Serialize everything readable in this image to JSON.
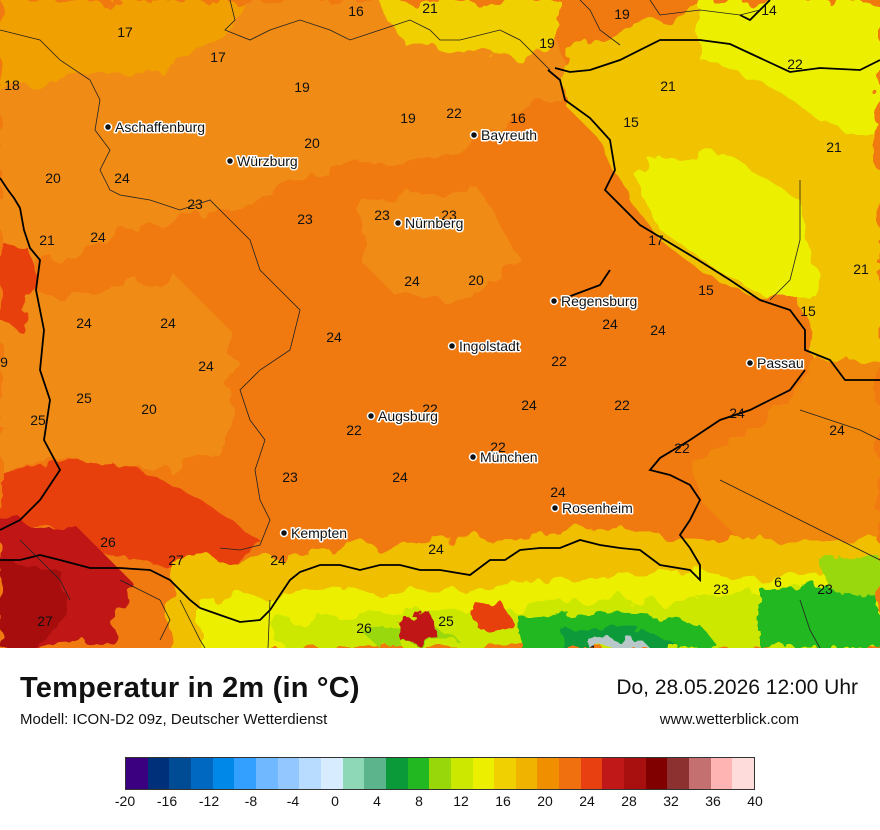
{
  "map": {
    "cities": [
      {
        "name": "Aschaffenburg"
      },
      {
        "name": "Würzburg"
      },
      {
        "name": "Bayreuth"
      },
      {
        "name": "Nürnberg"
      },
      {
        "name": "Regensburg"
      },
      {
        "name": "Ingolstadt"
      },
      {
        "name": "Passau"
      },
      {
        "name": "Augsburg"
      },
      {
        "name": "München"
      },
      {
        "name": "Rosenheim"
      },
      {
        "name": "Kempten"
      }
    ],
    "temperature_values": [
      "16",
      "21",
      "19",
      "14",
      "17",
      "17",
      "19",
      "19",
      "18",
      "22",
      "16",
      "21",
      "22",
      "19",
      "15",
      "20",
      "21",
      "20",
      "24",
      "23",
      "23",
      "23",
      "17",
      "21",
      "24",
      "23",
      "20",
      "21",
      "15",
      "15",
      "24",
      "24",
      "24",
      "24",
      "24",
      "9",
      "24",
      "22",
      "25",
      "20",
      "22",
      "24",
      "22",
      "22",
      "24",
      "24",
      "25",
      "22",
      "22",
      "23",
      "24",
      "24",
      "26",
      "27",
      "24",
      "24",
      "6",
      "23",
      "23",
      "27",
      "25",
      "24",
      "26",
      "1"
    ]
  },
  "footer": {
    "title": "Temperatur in 2m (in °C)",
    "subtitle": "Modell: ICON-D2 09z, Deutscher Wetterdienst",
    "datetime": "Do, 28.05.2026 12:00 Uhr",
    "website": "www.wetterblick.com"
  },
  "legend": {
    "colors": [
      "#3a0080",
      "#00307a",
      "#004c94",
      "#0068c0",
      "#0088e8",
      "#33a0ff",
      "#70b8ff",
      "#92c8ff",
      "#b8dcff",
      "#d8ecff",
      "#8ed8b8",
      "#5cb48c",
      "#0a9a3a",
      "#22b822",
      "#98d80a",
      "#cce800",
      "#ecf000",
      "#f0d000",
      "#f0b400",
      "#f09000",
      "#f07010",
      "#e84010",
      "#c01818",
      "#a81010",
      "#800000",
      "#8c3030",
      "#c47070",
      "#ffb4b4",
      "#ffdcdc"
    ],
    "ticks": [
      "-20",
      "-16",
      "-12",
      "-8",
      "-4",
      "0",
      "4",
      "8",
      "12",
      "16",
      "20",
      "24",
      "28",
      "32",
      "36",
      "40"
    ]
  }
}
